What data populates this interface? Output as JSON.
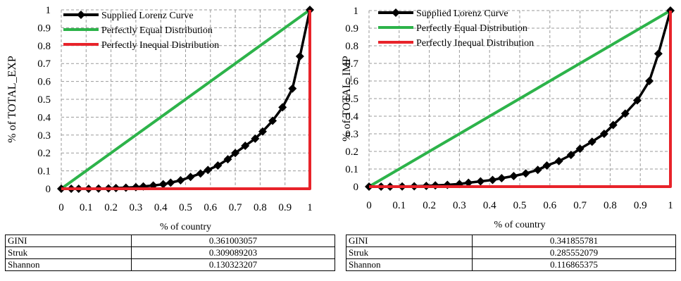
{
  "chart_data": [
    {
      "type": "line",
      "xlabel": "% of country",
      "ylabel": "% of TOTAL_EXP",
      "xlim": [
        0,
        1
      ],
      "ylim": [
        0,
        1
      ],
      "xticks": [
        "0",
        "0.1",
        "0.2",
        "0.3",
        "0.4",
        "0.5",
        "0.6",
        "0.7",
        "0.8",
        "0.9",
        "1"
      ],
      "yticks": [
        "0",
        "0.1",
        "0.2",
        "0.3",
        "0.4",
        "0.5",
        "0.6",
        "0.7",
        "0.8",
        "0.9",
        "1"
      ],
      "grid": true,
      "legend_position": "top-left",
      "series": [
        {
          "name": "Supplied Lorenz Curve",
          "color": "#000000",
          "marker": "diamond",
          "x": [
            0,
            0.04,
            0.07,
            0.11,
            0.15,
            0.19,
            0.22,
            0.26,
            0.3,
            0.33,
            0.37,
            0.41,
            0.44,
            0.48,
            0.52,
            0.56,
            0.59,
            0.63,
            0.67,
            0.7,
            0.74,
            0.78,
            0.81,
            0.85,
            0.89,
            0.93,
            0.96,
            1.0
          ],
          "y": [
            0,
            0.0,
            0.0,
            0.0,
            0.001,
            0.002,
            0.004,
            0.006,
            0.009,
            0.013,
            0.018,
            0.025,
            0.034,
            0.047,
            0.066,
            0.085,
            0.105,
            0.13,
            0.165,
            0.2,
            0.24,
            0.28,
            0.32,
            0.38,
            0.455,
            0.56,
            0.74,
            1.0
          ]
        },
        {
          "name": "Perfectly Equal Distribution",
          "color": "#2db34a",
          "x": [
            0,
            1
          ],
          "y": [
            0,
            1
          ]
        },
        {
          "name": "Perfectly Inequal Distribution",
          "color": "#e8232a",
          "x": [
            0,
            1,
            1
          ],
          "y": [
            0,
            0,
            1
          ]
        }
      ]
    },
    {
      "type": "line",
      "xlabel": "% of country",
      "ylabel": "% of TOTAL_IMP",
      "xlim": [
        0,
        1
      ],
      "ylim": [
        0,
        1
      ],
      "xticks": [
        "0",
        "0.1",
        "0.2",
        "0.3",
        "0.4",
        "0.5",
        "0.6",
        "0.7",
        "0.8",
        "0.9",
        "1"
      ],
      "yticks": [
        "0",
        "0.1",
        "0.2",
        "0.3",
        "0.4",
        "0.5",
        "0.6",
        "0.7",
        "0.8",
        "0.9",
        "1"
      ],
      "grid": true,
      "legend_position": "top-left",
      "series": [
        {
          "name": "Supplied Lorenz Curve",
          "color": "#000000",
          "marker": "diamond",
          "x": [
            0,
            0.04,
            0.07,
            0.11,
            0.15,
            0.19,
            0.22,
            0.26,
            0.3,
            0.33,
            0.37,
            0.41,
            0.44,
            0.48,
            0.52,
            0.56,
            0.59,
            0.63,
            0.67,
            0.7,
            0.74,
            0.78,
            0.81,
            0.85,
            0.89,
            0.93,
            0.96,
            1.0
          ],
          "y": [
            0,
            0.0,
            0.0,
            0.001,
            0.002,
            0.004,
            0.007,
            0.01,
            0.015,
            0.022,
            0.03,
            0.038,
            0.048,
            0.06,
            0.075,
            0.095,
            0.12,
            0.145,
            0.18,
            0.215,
            0.255,
            0.3,
            0.35,
            0.415,
            0.49,
            0.6,
            0.755,
            1.0
          ]
        },
        {
          "name": "Perfectly Equal Distribution",
          "color": "#2db34a",
          "x": [
            0,
            1
          ],
          "y": [
            0,
            1
          ]
        },
        {
          "name": "Perfectly Inequal Distribution",
          "color": "#e8232a",
          "x": [
            0,
            1,
            1
          ],
          "y": [
            0,
            0,
            1
          ]
        }
      ]
    }
  ],
  "tables": {
    "left": [
      {
        "label": "GINI",
        "value": "0.361003057"
      },
      {
        "label": "Struk",
        "value": "0.309089203"
      },
      {
        "label": "Shannon",
        "value": "0.130323207"
      }
    ],
    "right": [
      {
        "label": "GINI",
        "value": "0.341855781"
      },
      {
        "label": "Struk",
        "value": "0.285552079"
      },
      {
        "label": "Shannon",
        "value": "0.116865375"
      }
    ]
  }
}
